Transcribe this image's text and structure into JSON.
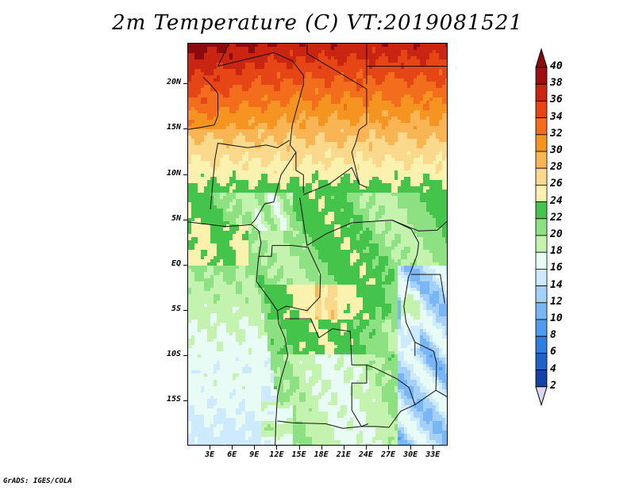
{
  "title": "2m Temperature (C) VT:2019081521",
  "credit": "GrADS: IGES/COLA",
  "map": {
    "lon_range": [
      0,
      35
    ],
    "lat_range": [
      -20,
      24.5
    ],
    "y_ticks": [
      {
        "lat": 20,
        "label": "20N"
      },
      {
        "lat": 15,
        "label": "15N"
      },
      {
        "lat": 10,
        "label": "10N"
      },
      {
        "lat": 5,
        "label": "5N"
      },
      {
        "lat": 0,
        "label": "EQ"
      },
      {
        "lat": -5,
        "label": "5S"
      },
      {
        "lat": -10,
        "label": "10S"
      },
      {
        "lat": -15,
        "label": "15S"
      }
    ],
    "x_ticks": [
      {
        "lon": 3,
        "label": "3E"
      },
      {
        "lon": 6,
        "label": "6E"
      },
      {
        "lon": 9,
        "label": "9E"
      },
      {
        "lon": 12,
        "label": "12E"
      },
      {
        "lon": 15,
        "label": "15E"
      },
      {
        "lon": 18,
        "label": "18E"
      },
      {
        "lon": 21,
        "label": "21E"
      },
      {
        "lon": 24,
        "label": "24E"
      },
      {
        "lon": 27,
        "label": "27E"
      },
      {
        "lon": 30,
        "label": "30E"
      },
      {
        "lon": 33,
        "label": "33E"
      }
    ]
  },
  "colorbar": {
    "levels": [
      "2",
      "4",
      "6",
      "8",
      "10",
      "12",
      "14",
      "16",
      "18",
      "20",
      "22",
      "24",
      "26",
      "28",
      "30",
      "32",
      "34",
      "36",
      "38",
      "40"
    ],
    "colors": [
      "#0a1a6e",
      "#1541a8",
      "#1f62c8",
      "#2f7ee0",
      "#4e9bf0",
      "#78b6f6",
      "#a4d0fa",
      "#cdeaff",
      "#e8fbf4",
      "#c4f3b0",
      "#8ee182",
      "#44c44a",
      "#fbf2b0",
      "#fbd98c",
      "#f9b454",
      "#f59420",
      "#f26e1c",
      "#e64516",
      "#c92512",
      "#9c1010"
    ],
    "below_color": "#ddd8f0",
    "above_color": "#8a0a10"
  }
}
